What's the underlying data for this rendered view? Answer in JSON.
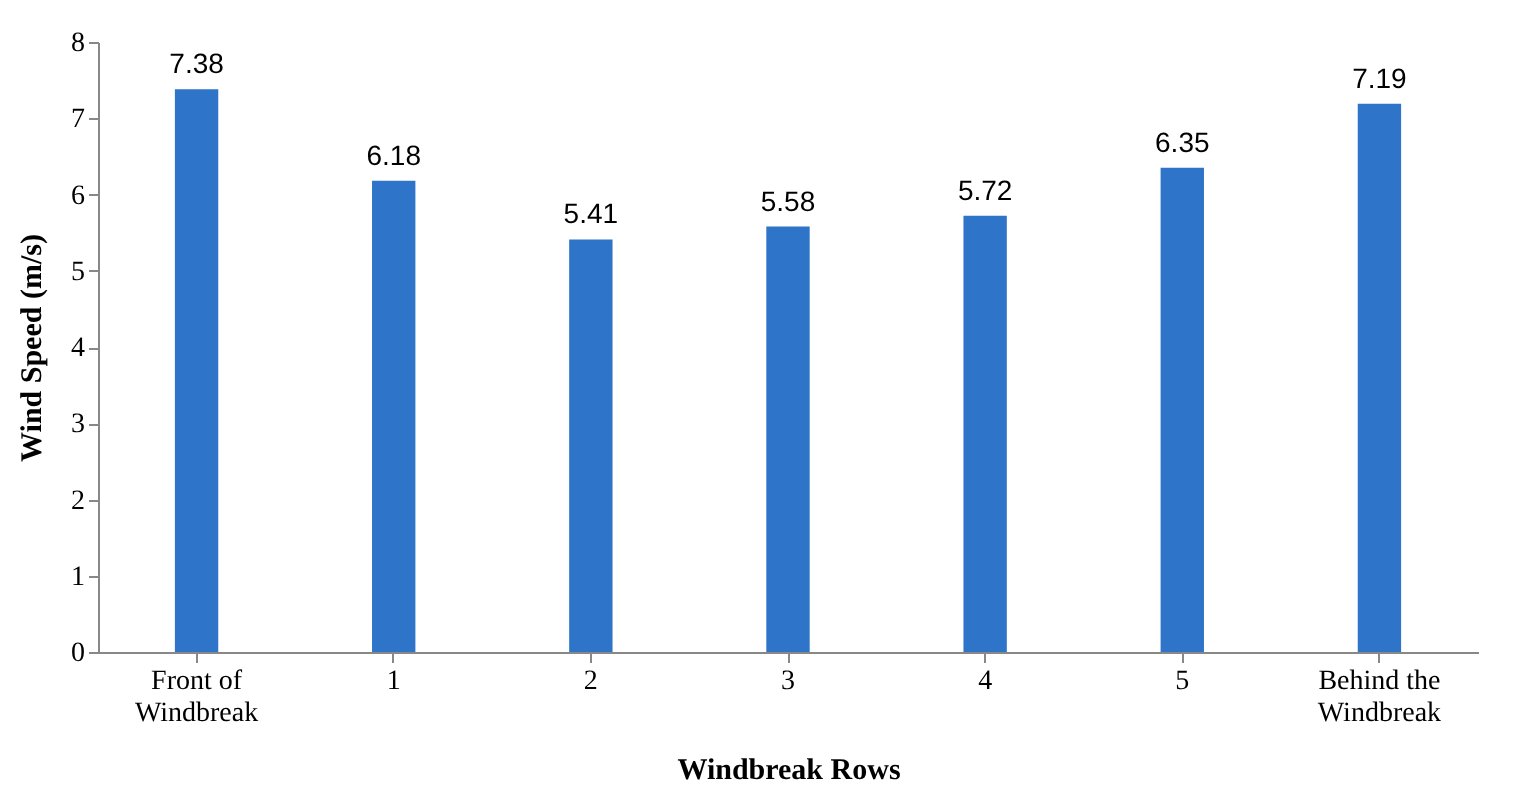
{
  "chart_data": {
    "type": "bar",
    "xlabel": "Windbreak  Rows",
    "ylabel": "Wind Speed (m/s)",
    "categories": [
      "Front of Windbreak",
      "1",
      "2",
      "3",
      "4",
      "5",
      "Behind the Windbreak"
    ],
    "values": [
      7.38,
      6.18,
      5.41,
      5.58,
      5.72,
      6.35,
      7.19
    ],
    "color": "#2e74c8",
    "data_labels": true,
    "ylim": [
      0,
      8
    ],
    "yticks": [
      0,
      1,
      2,
      3,
      4,
      5,
      6,
      7,
      8
    ],
    "grid": false
  }
}
